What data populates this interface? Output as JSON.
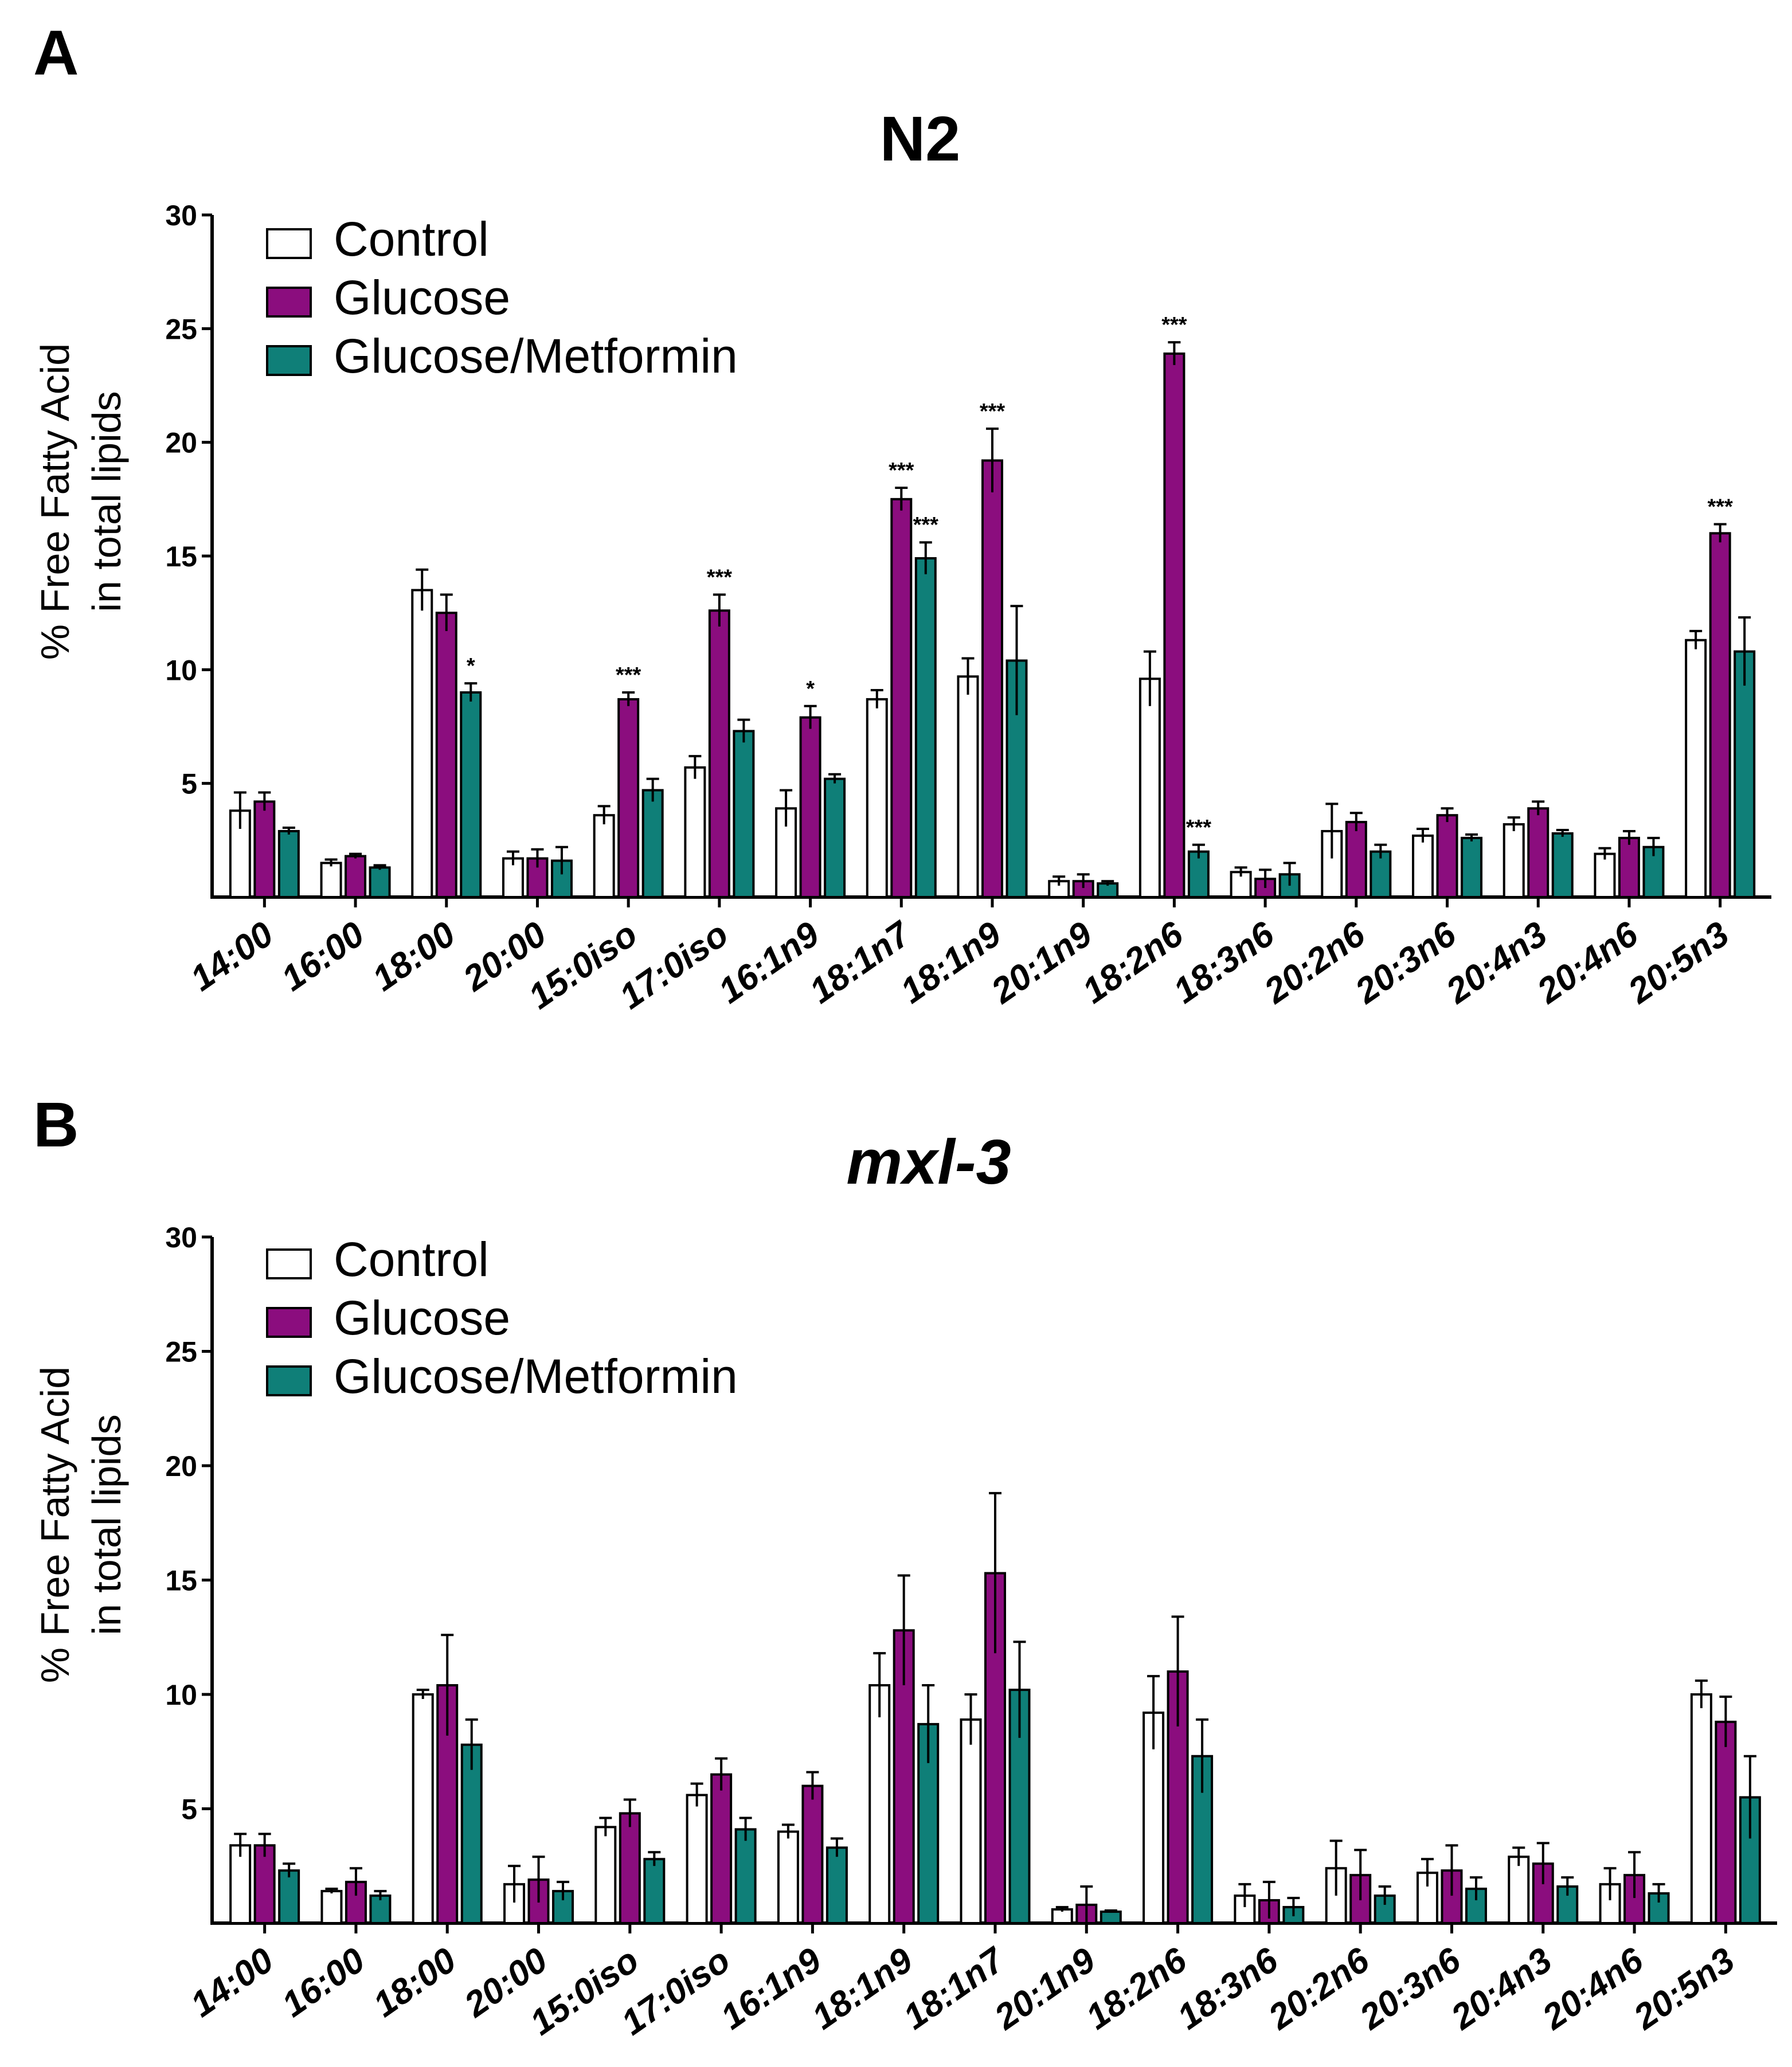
{
  "colors": {
    "control": "#ffffff",
    "glucose": "#8b0d7e",
    "glucose_metformin": "#0f7f78",
    "axis": "#000000"
  },
  "chart_data": [
    {
      "panel": "A",
      "type": "bar",
      "title": "N2",
      "title_italic": false,
      "ylabel": [
        "% Free Fatty Acid",
        "in total lipids"
      ],
      "ylim": [
        0,
        30
      ],
      "yticks": [
        "5",
        "10",
        "15",
        "20",
        "25",
        "30"
      ],
      "legend": [
        "Control",
        "Glucose",
        "Glucose/Metformin"
      ],
      "categories": [
        "14:00",
        "16:00",
        "18:00",
        "20:00",
        "15:0iso",
        "17:0iso",
        "16:1n9",
        "18:1n7",
        "18:1n9",
        "20:1n9",
        "18:2n6",
        "18:3n6",
        "20:2n6",
        "20:3n6",
        "20:4n3",
        "20:4n6",
        "20:5n3"
      ],
      "series": [
        {
          "name": "Control",
          "values": [
            3.8,
            1.5,
            13.5,
            1.7,
            3.6,
            5.7,
            3.9,
            8.7,
            9.7,
            0.7,
            9.6,
            1.1,
            2.9,
            2.7,
            3.2,
            1.9,
            11.3
          ],
          "errors": [
            0.8,
            0.15,
            0.9,
            0.3,
            0.4,
            0.5,
            0.8,
            0.4,
            0.8,
            0.2,
            1.2,
            0.2,
            1.2,
            0.3,
            0.3,
            0.25,
            0.4
          ]
        },
        {
          "name": "Glucose",
          "values": [
            4.2,
            1.8,
            12.5,
            1.7,
            8.7,
            12.6,
            7.9,
            17.5,
            19.2,
            0.7,
            23.9,
            0.8,
            3.3,
            3.6,
            3.9,
            2.6,
            16.0
          ],
          "errors": [
            0.4,
            0.1,
            0.8,
            0.4,
            0.3,
            0.7,
            0.5,
            0.5,
            1.4,
            0.3,
            0.5,
            0.4,
            0.4,
            0.3,
            0.3,
            0.3,
            0.4
          ]
        },
        {
          "name": "Glucose/Metformin",
          "values": [
            2.9,
            1.3,
            9.0,
            1.6,
            4.7,
            7.3,
            5.2,
            14.9,
            10.4,
            0.6,
            2.0,
            1.0,
            2.0,
            2.6,
            2.8,
            2.2,
            10.8
          ],
          "errors": [
            0.15,
            0.1,
            0.4,
            0.6,
            0.5,
            0.5,
            0.2,
            0.7,
            2.4,
            0.1,
            0.3,
            0.5,
            0.3,
            0.15,
            0.15,
            0.4,
            1.5
          ]
        }
      ],
      "annotations": [
        {
          "category": "18:00",
          "series": "Glucose/Metformin",
          "text": "*"
        },
        {
          "category": "15:0iso",
          "series": "Glucose",
          "text": "***"
        },
        {
          "category": "17:0iso",
          "series": "Glucose",
          "text": "***"
        },
        {
          "category": "16:1n9",
          "series": "Glucose",
          "text": "*"
        },
        {
          "category": "18:1n7",
          "series": "Glucose",
          "text": "***"
        },
        {
          "category": "18:1n7",
          "series": "Glucose/Metformin",
          "text": "***"
        },
        {
          "category": "18:1n9",
          "series": "Glucose",
          "text": "***"
        },
        {
          "category": "18:2n6",
          "series": "Glucose",
          "text": "***"
        },
        {
          "category": "18:2n6",
          "series": "Glucose/Metformin",
          "text": "***"
        },
        {
          "category": "20:5n3",
          "series": "Glucose",
          "text": "***"
        }
      ]
    },
    {
      "panel": "B",
      "type": "bar",
      "title": "mxl-3",
      "title_italic": true,
      "ylabel": [
        "% Free Fatty Acid",
        "in total lipids"
      ],
      "ylim": [
        0,
        30
      ],
      "yticks": [
        "5",
        "10",
        "15",
        "20",
        "25",
        "30"
      ],
      "legend": [
        "Control",
        "Glucose",
        "Glucose/Metformin"
      ],
      "categories": [
        "14:00",
        "16:00",
        "18:00",
        "20:00",
        "15:0iso",
        "17:0iso",
        "16:1n9",
        "18:1n9",
        "18:1n7",
        "20:1n9",
        "18:2n6",
        "18:3n6",
        "20:2n6",
        "20:3n6",
        "20:4n3",
        "20:4n6",
        "20:5n3"
      ],
      "series": [
        {
          "name": "Control",
          "values": [
            3.4,
            1.4,
            10.0,
            1.7,
            4.2,
            5.6,
            4.0,
            10.4,
            8.9,
            0.6,
            9.2,
            1.2,
            2.4,
            2.2,
            2.9,
            1.7,
            10.0
          ],
          "errors": [
            0.5,
            0.1,
            0.2,
            0.8,
            0.4,
            0.5,
            0.3,
            1.4,
            1.1,
            0.1,
            1.6,
            0.5,
            1.2,
            0.6,
            0.4,
            0.7,
            0.6
          ]
        },
        {
          "name": "Glucose",
          "values": [
            3.4,
            1.8,
            10.4,
            1.9,
            4.8,
            6.5,
            6.0,
            12.8,
            15.3,
            0.8,
            11.0,
            1.0,
            2.1,
            2.3,
            2.6,
            2.1,
            8.8
          ],
          "errors": [
            0.5,
            0.6,
            2.2,
            1.0,
            0.6,
            0.7,
            0.6,
            2.4,
            3.5,
            0.8,
            2.4,
            0.8,
            1.1,
            1.1,
            0.9,
            1.0,
            1.1
          ]
        },
        {
          "name": "Glucose/Metformin",
          "values": [
            2.3,
            1.2,
            7.8,
            1.4,
            2.8,
            4.1,
            3.3,
            8.7,
            10.2,
            0.5,
            7.3,
            0.7,
            1.2,
            1.5,
            1.6,
            1.3,
            5.5
          ],
          "errors": [
            0.3,
            0.2,
            1.1,
            0.4,
            0.3,
            0.5,
            0.4,
            1.7,
            2.1,
            0.05,
            1.6,
            0.4,
            0.4,
            0.5,
            0.4,
            0.4,
            1.8
          ]
        }
      ],
      "annotations": []
    }
  ]
}
